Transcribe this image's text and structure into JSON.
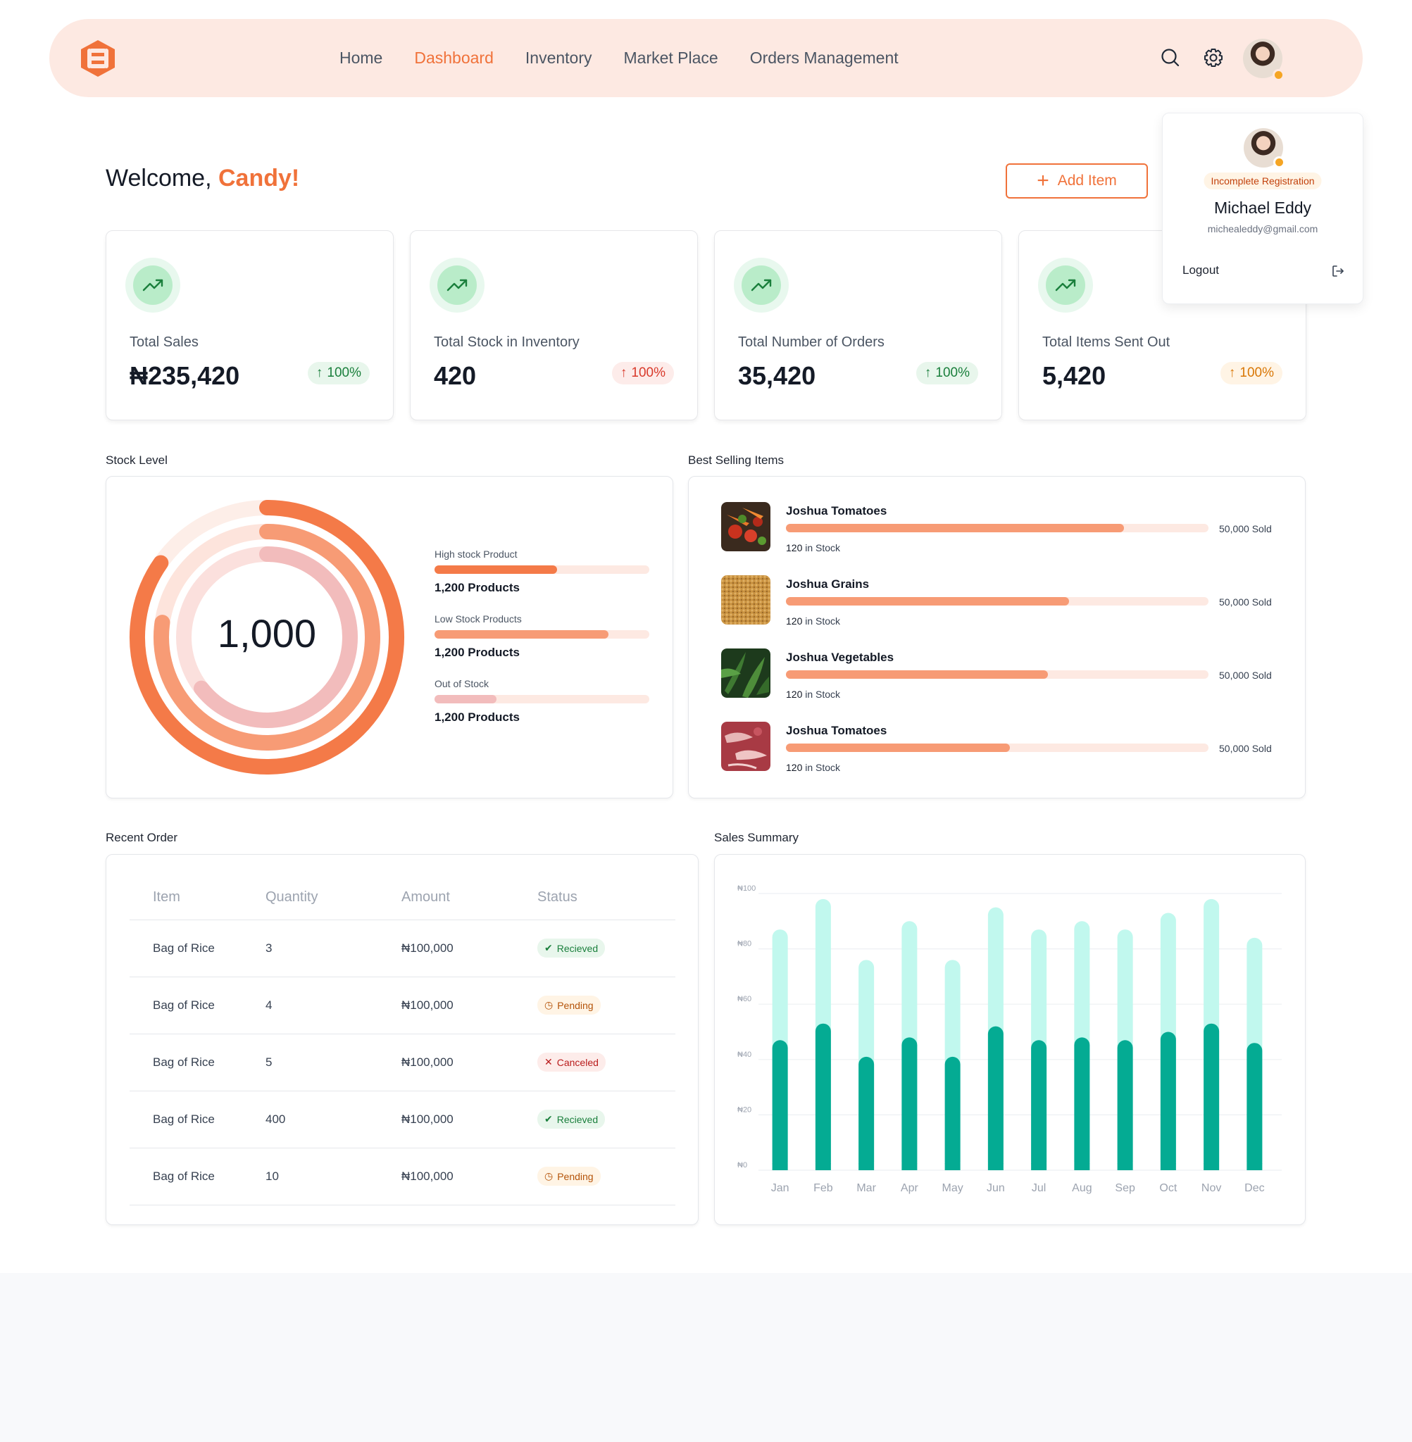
{
  "nav": {
    "links": [
      "Home",
      "Dashboard",
      "Inventory",
      "Market Place",
      "Orders Management"
    ],
    "active": "Dashboard"
  },
  "welcome": {
    "greeting": "Welcome,",
    "name": "Candy!"
  },
  "add_item_label": "Add Item",
  "stats": [
    {
      "label": "Total Sales",
      "value": "₦235,420",
      "change": "100%",
      "tone": "green"
    },
    {
      "label": "Total Stock in Inventory",
      "value": "420",
      "change": "100%",
      "tone": "red"
    },
    {
      "label": "Total Number of Orders",
      "value": "35,420",
      "change": "100%",
      "tone": "green"
    },
    {
      "label": "Total Items Sent Out",
      "value": "5,420",
      "change": "100%",
      "tone": "orange"
    }
  ],
  "profile": {
    "badge": "Incomplete Registration",
    "name": "Michael Eddy",
    "email": "michealeddy@gmail.com",
    "logout_label": "Logout"
  },
  "stock_level": {
    "title": "Stock Level",
    "center_value": "1,000",
    "items": [
      {
        "label": "High stock Product",
        "value": "1,200 Products",
        "fraction": 0.57,
        "color": "#f47a48"
      },
      {
        "label": "Low Stock Products",
        "value": "1,200 Products",
        "fraction": 0.81,
        "color": "#f79b75"
      },
      {
        "label": "Out of Stock",
        "value": "1,200 Products",
        "fraction": 0.29,
        "color": "#f2bcbc"
      }
    ]
  },
  "best_selling": {
    "title": "Best Selling Items",
    "items": [
      {
        "name": "Joshua Tomatoes",
        "sold": "50,000 Sold",
        "stock_num": "120",
        "stock_text": "in Stock",
        "fraction": 0.8,
        "thumb": "vegetables"
      },
      {
        "name": "Joshua Grains",
        "sold": "50,000 Sold",
        "stock_num": "120",
        "stock_text": "in Stock",
        "fraction": 0.67,
        "thumb": "grains"
      },
      {
        "name": "Joshua Vegetables",
        "sold": "50,000 Sold",
        "stock_num": "120",
        "stock_text": "in Stock",
        "fraction": 0.62,
        "thumb": "greens"
      },
      {
        "name": "Joshua Tomatoes",
        "sold": "50,000 Sold",
        "stock_num": "120",
        "stock_text": "in Stock",
        "fraction": 0.53,
        "thumb": "meat"
      }
    ]
  },
  "recent_orders": {
    "title": "Recent Order",
    "columns": [
      "Item",
      "Quantity",
      "Amount",
      "Status"
    ],
    "rows": [
      {
        "item": "Bag of Rice",
        "quantity": "3",
        "amount": "₦100,000",
        "status": "Recieved",
        "kind": "received"
      },
      {
        "item": "Bag of Rice",
        "quantity": "4",
        "amount": "₦100,000",
        "status": "Pending",
        "kind": "pending"
      },
      {
        "item": "Bag of Rice",
        "quantity": "5",
        "amount": "₦100,000",
        "status": "Canceled",
        "kind": "canceled"
      },
      {
        "item": "Bag of Rice",
        "quantity": "400",
        "amount": "₦100,000",
        "status": "Recieved",
        "kind": "received"
      },
      {
        "item": "Bag of Rice",
        "quantity": "10",
        "amount": "₦100,000",
        "status": "Pending",
        "kind": "pending"
      }
    ]
  },
  "chart_data": {
    "type": "bar",
    "title": "Sales Summary",
    "categories": [
      "Jan",
      "Feb",
      "Mar",
      "Apr",
      "May",
      "Jun",
      "Jul",
      "Aug",
      "Sep",
      "Oct",
      "Nov",
      "Dec"
    ],
    "series": [
      {
        "values": [
          47,
          53,
          41,
          48,
          41,
          52,
          47,
          48,
          47,
          50,
          53,
          46
        ],
        "color": "#04ab93"
      },
      {
        "values": [
          87,
          98,
          76,
          90,
          76,
          95,
          87,
          90,
          87,
          93,
          98,
          84
        ],
        "color": "#c1f8ee"
      }
    ],
    "yticks": [
      "₦0",
      "₦20",
      "₦40",
      "₦60",
      "₦80",
      "₦100"
    ],
    "ylim": [
      0,
      100
    ],
    "grid": true
  }
}
